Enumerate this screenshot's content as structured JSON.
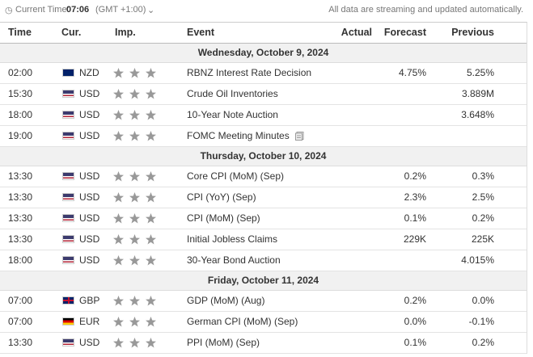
{
  "header": {
    "time_label": "Current Time:",
    "time": "07:06",
    "timezone": "(GMT +1:00)",
    "note": "All data are streaming and updated automatically."
  },
  "columns": [
    "Time",
    "Cur.",
    "Imp.",
    "Event",
    "Actual",
    "Forecast",
    "Previous"
  ],
  "days": [
    {
      "date": "Wednesday, October 9, 2024",
      "rows": [
        {
          "time": "02:00",
          "currency": "NZD",
          "event": "RBNZ Interest Rate Decision",
          "forecast": "4.75%",
          "previous": "5.25%"
        },
        {
          "time": "15:30",
          "currency": "USD",
          "event": "Crude Oil Inventories",
          "previous": "3.889M"
        },
        {
          "time": "18:00",
          "currency": "USD",
          "event": "10-Year Note Auction",
          "previous": "3.648%"
        },
        {
          "time": "19:00",
          "currency": "USD",
          "event": "FOMC Meeting Minutes"
        }
      ]
    },
    {
      "date": "Thursday, October 10, 2024",
      "rows": [
        {
          "time": "13:30",
          "currency": "USD",
          "event": "Core CPI (MoM) (Sep)",
          "forecast": "0.2%",
          "previous": "0.3%"
        },
        {
          "time": "13:30",
          "currency": "USD",
          "event": "CPI (YoY) (Sep)",
          "forecast": "2.3%",
          "previous": "2.5%"
        },
        {
          "time": "13:30",
          "currency": "USD",
          "event": "CPI (MoM) (Sep)",
          "forecast": "0.1%",
          "previous": "0.2%"
        },
        {
          "time": "13:30",
          "currency": "USD",
          "event": "Initial Jobless Claims",
          "forecast": "229K",
          "previous": "225K"
        },
        {
          "time": "18:00",
          "currency": "USD",
          "event": "30-Year Bond Auction",
          "previous": "4.015%"
        }
      ]
    },
    {
      "date": "Friday, October 11, 2024",
      "rows": [
        {
          "time": "07:00",
          "currency": "GBP",
          "event": "GDP (MoM) (Aug)",
          "forecast": "0.2%",
          "previous": "0.0%"
        },
        {
          "time": "07:00",
          "currency": "EUR",
          "event": "German CPI (MoM) (Sep)",
          "forecast": "0.0%",
          "previous": "-0.1%"
        },
        {
          "time": "13:30",
          "currency": "USD",
          "event": "PPI (MoM) (Sep)",
          "forecast": "0.1%",
          "previous": "0.2%"
        }
      ]
    }
  ]
}
